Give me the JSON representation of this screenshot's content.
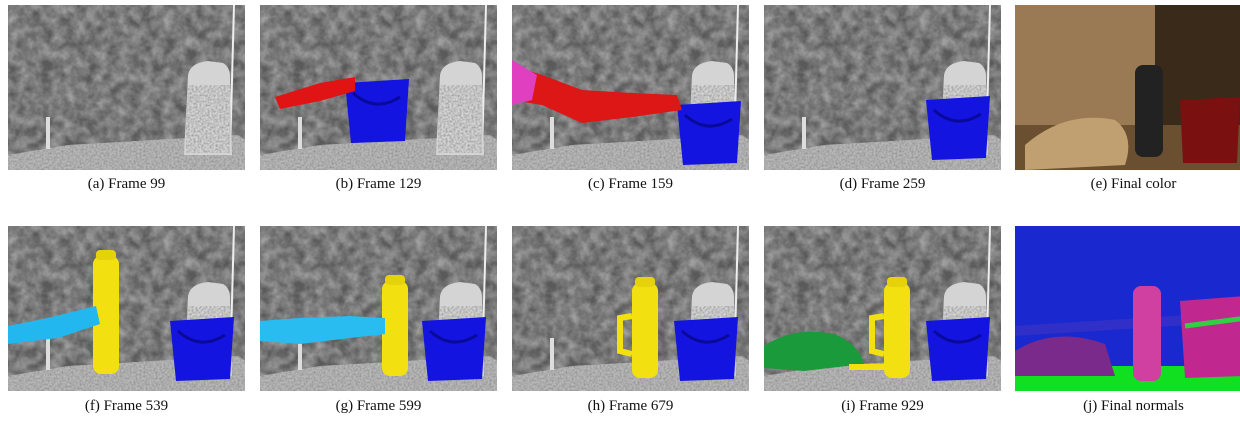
{
  "panels": [
    {
      "caption": "(a) Frame 99"
    },
    {
      "caption": "(b) Frame 129"
    },
    {
      "caption": "(c) Frame 159"
    },
    {
      "caption": "(d) Frame 259"
    },
    {
      "caption": "(e) Final color"
    },
    {
      "caption": "(f) Frame 539"
    },
    {
      "caption": "(g) Frame 599"
    },
    {
      "caption": "(h) Frame 679"
    },
    {
      "caption": "(i) Frame 929"
    },
    {
      "caption": "(j) Final normals"
    }
  ]
}
